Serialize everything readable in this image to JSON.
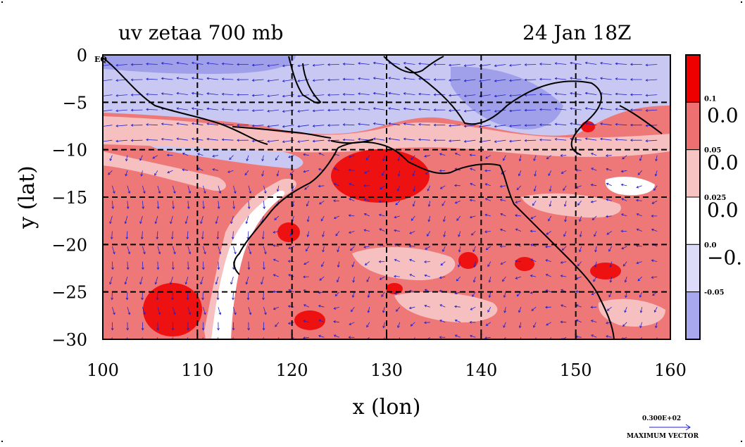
{
  "title_left": "uv zetaa 700 mb",
  "title_right": "24 Jan 18Z",
  "x_label": "x (lon)",
  "y_label": "y (lat)",
  "eq_label": "EQ",
  "x_ticks": [
    "100",
    "110",
    "120",
    "130",
    "140",
    "150",
    "160"
  ],
  "y_ticks": [
    "0",
    "−5",
    "−10",
    "−15",
    "−20",
    "−25",
    "−30"
  ],
  "colorbar": {
    "small_labels": [
      "0.1",
      "0.05",
      "0.025",
      "0.0",
      "-0.05"
    ],
    "big_labels": [
      "0.0",
      "0.0",
      "0.0",
      "−0."
    ],
    "colors": [
      "#ee0000",
      "#ee7070",
      "#f7c4c4",
      "#ffffff",
      "#dcdcf8",
      "#a8a8ee"
    ]
  },
  "max_vector": {
    "value": "0.300E+02",
    "label": "MAXIMUM VECTOR"
  },
  "map": {
    "x_range": [
      100,
      160
    ],
    "y_range": [
      -30,
      0
    ],
    "grid_lon": [
      110,
      120,
      130,
      140,
      150
    ],
    "grid_lat": [
      -5,
      -10,
      -15,
      -20,
      -25
    ],
    "field_colors": {
      "strong_pos": "#ee1111",
      "pos": "#ee7777",
      "weak_pos": "#f6c0c0",
      "neg": "#c8c8f2",
      "strong_neg": "#a0a0ea"
    },
    "vector_color": "#2222cc"
  }
}
